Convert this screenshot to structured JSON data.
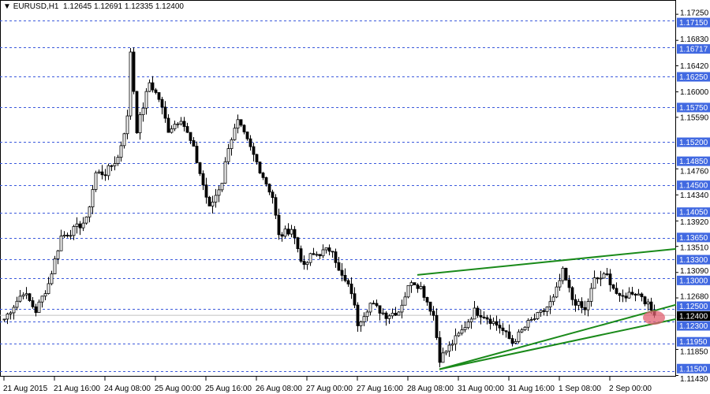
{
  "header": {
    "menu_icon": "triangle-down-icon",
    "symbol": "EURUSD,H1",
    "ohlc": "1.12645 1.12691 1.12335 1.12400"
  },
  "colors": {
    "bull_bear": "#000000",
    "level_line": "#3c5adc",
    "level_label_bg": "#4169e1",
    "trendline": "#1a8a1a",
    "marker": "#e06070",
    "current_price_bg": "#000000"
  },
  "price_axis": {
    "ticks": [
      "1.17250",
      "1.16830",
      "1.16420",
      "1.16000",
      "1.15590",
      "1.14760",
      "1.14340",
      "1.13920",
      "1.13510",
      "1.13090",
      "1.12680",
      "1.11850",
      "1.11430"
    ],
    "levels": [
      "1.17150",
      "1.16717",
      "1.16250",
      "1.15750",
      "1.15200",
      "1.14850",
      "1.14500",
      "1.14050",
      "1.13650",
      "1.13300",
      "1.13000",
      "1.12500",
      "1.12300",
      "1.11950",
      "1.11500"
    ],
    "current_price": "1.12400"
  },
  "time_axis": [
    "21 Aug 2015",
    "21 Aug 16:00",
    "24 Aug 08:00",
    "25 Aug 00:00",
    "25 Aug 16:00",
    "26 Aug 08:00",
    "27 Aug 00:00",
    "27 Aug 16:00",
    "28 Aug 08:00",
    "31 Aug 00:00",
    "31 Aug 16:00",
    "1 Sep 08:00",
    "2 Sep 00:00"
  ],
  "chart_data": {
    "type": "candlestick",
    "price_path": [
      [
        0,
        1.1234
      ],
      [
        6,
        1.1278
      ],
      [
        10,
        1.1247
      ],
      [
        14,
        1.1291
      ],
      [
        18,
        1.1367
      ],
      [
        21,
        1.1374
      ],
      [
        26,
        1.1393
      ],
      [
        29,
        1.1469
      ],
      [
        32,
        1.1469
      ],
      [
        36,
        1.1494
      ],
      [
        39,
        1.1558
      ],
      [
        40,
        1.1666
      ],
      [
        42,
        1.1539
      ],
      [
        46,
        1.1615
      ],
      [
        49,
        1.1589
      ],
      [
        52,
        1.1539
      ],
      [
        56,
        1.1558
      ],
      [
        60,
        1.1507
      ],
      [
        65,
        1.1412
      ],
      [
        69,
        1.1456
      ],
      [
        71,
        1.1513
      ],
      [
        74,
        1.1551
      ],
      [
        77,
        1.152
      ],
      [
        81,
        1.1475
      ],
      [
        85,
        1.1431
      ],
      [
        87,
        1.1367
      ],
      [
        91,
        1.138
      ],
      [
        95,
        1.1316
      ],
      [
        97,
        1.1335
      ],
      [
        101,
        1.1342
      ],
      [
        104,
        1.1348
      ],
      [
        106,
        1.131
      ],
      [
        110,
        1.1278
      ],
      [
        112,
        1.1227
      ],
      [
        116,
        1.1259
      ],
      [
        121,
        1.124
      ],
      [
        125,
        1.1247
      ],
      [
        129,
        1.1297
      ],
      [
        132,
        1.1285
      ],
      [
        136,
        1.124
      ],
      [
        138,
        1.117
      ],
      [
        141,
        1.1189
      ],
      [
        145,
        1.1215
      ],
      [
        149,
        1.1247
      ],
      [
        152,
        1.124
      ],
      [
        157,
        1.1221
      ],
      [
        161,
        1.1196
      ],
      [
        166,
        1.1227
      ],
      [
        171,
        1.1247
      ],
      [
        174,
        1.1266
      ],
      [
        177,
        1.131
      ],
      [
        180,
        1.1266
      ],
      [
        184,
        1.1247
      ],
      [
        187,
        1.1297
      ],
      [
        191,
        1.1304
      ],
      [
        195,
        1.1266
      ],
      [
        199,
        1.1278
      ],
      [
        202,
        1.1272
      ],
      [
        206,
        1.124
      ]
    ],
    "trendlines": [
      {
        "from": [
          131,
          1.1305
        ],
        "to": [
          213,
          1.1347
        ]
      },
      {
        "from": [
          138,
          1.1153
        ],
        "to": [
          213,
          1.1257
        ]
      },
      {
        "from": [
          138,
          1.1153
        ],
        "to": [
          213,
          1.1234
        ]
      }
    ],
    "marker": [
      206,
      1.124
    ]
  }
}
